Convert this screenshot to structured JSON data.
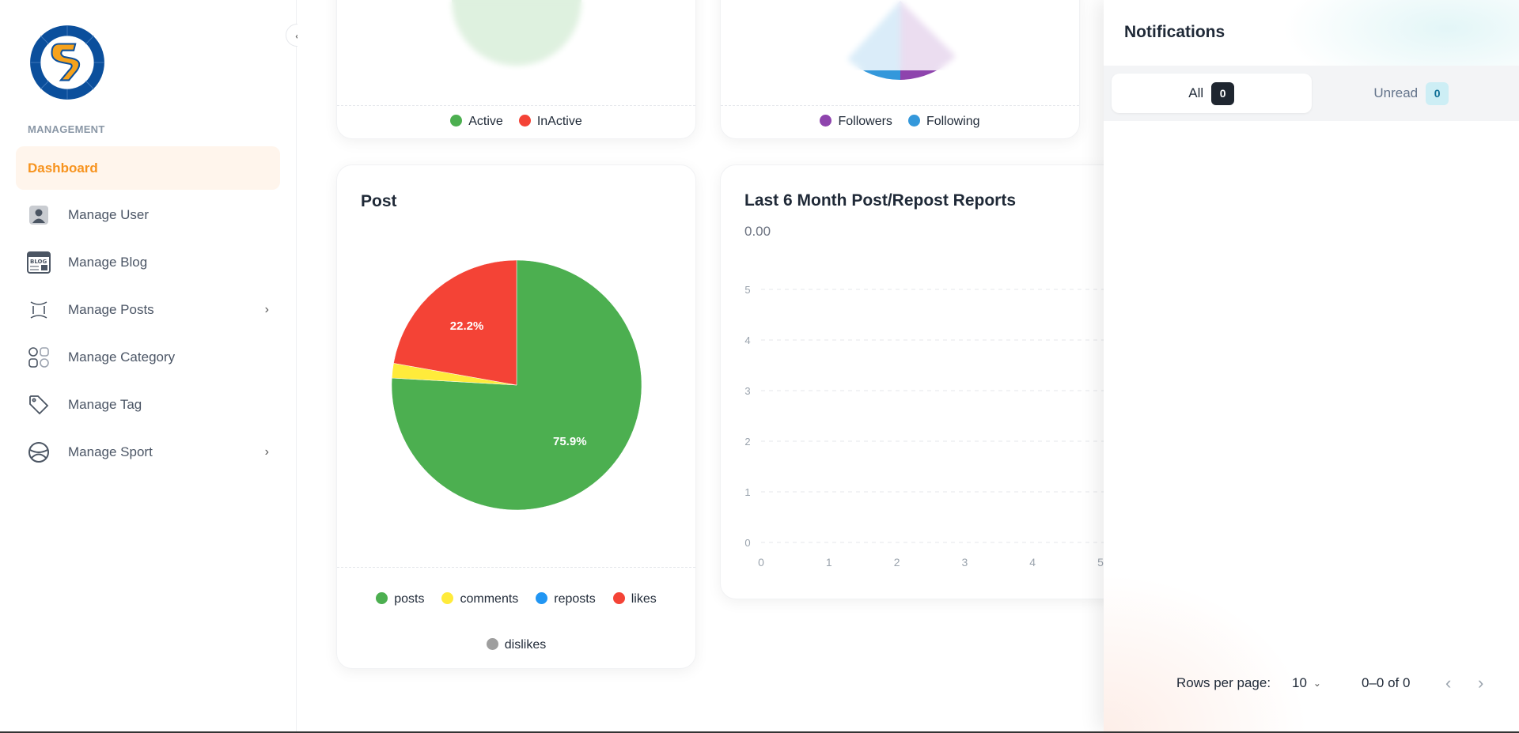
{
  "sidebar": {
    "section": "MANAGEMENT",
    "items": [
      {
        "label": "Dashboard",
        "icon": "dashboard"
      },
      {
        "label": "Manage User",
        "icon": "user-icon"
      },
      {
        "label": "Manage Blog",
        "icon": "blog-icon"
      },
      {
        "label": "Manage Posts",
        "icon": "posts-icon"
      },
      {
        "label": "Manage Category",
        "icon": "category-icon"
      },
      {
        "label": "Manage Tag",
        "icon": "tag-icon"
      },
      {
        "label": "Manage Sport",
        "icon": "sport-icon"
      }
    ]
  },
  "cards": {
    "users_legend": [
      {
        "label": "Active",
        "color": "#4caf50"
      },
      {
        "label": "InActive",
        "color": "#f44336"
      }
    ],
    "follow_legend": [
      {
        "label": "Followers",
        "color": "#8e44ad"
      },
      {
        "label": "Following",
        "color": "#3498db"
      }
    ],
    "post_title": "Post",
    "report_title": "Last 6 Month Post/Repost Reports",
    "report_total": "0.00"
  },
  "chart_data": [
    {
      "type": "pie",
      "title": "Post",
      "categories": [
        "posts",
        "comments",
        "reposts",
        "likes",
        "dislikes"
      ],
      "values": [
        75.9,
        1.9,
        0,
        22.2,
        0
      ],
      "labels": [
        "75.9%",
        "",
        "",
        "22.2%",
        ""
      ],
      "colors": [
        "#4caf50",
        "#ffeb3b",
        "#2196f3",
        "#f44336",
        "#9e9e9e"
      ]
    },
    {
      "type": "line",
      "title": "Last 6 Month Post/Repost Reports",
      "x_ticks": [
        "0",
        "1",
        "2",
        "3",
        "4",
        "5"
      ],
      "y_ticks": [
        "0",
        "1",
        "2",
        "3",
        "4",
        "5"
      ],
      "ylim": [
        0,
        5
      ],
      "xlim": [
        0,
        5
      ],
      "grid": true,
      "series": []
    }
  ],
  "notifications": {
    "title": "Notifications",
    "tabs": [
      {
        "label": "All",
        "count": "0"
      },
      {
        "label": "Unread",
        "count": "0"
      }
    ],
    "rows_label": "Rows per page:",
    "rows_value": "10",
    "range": "0–0 of 0"
  }
}
